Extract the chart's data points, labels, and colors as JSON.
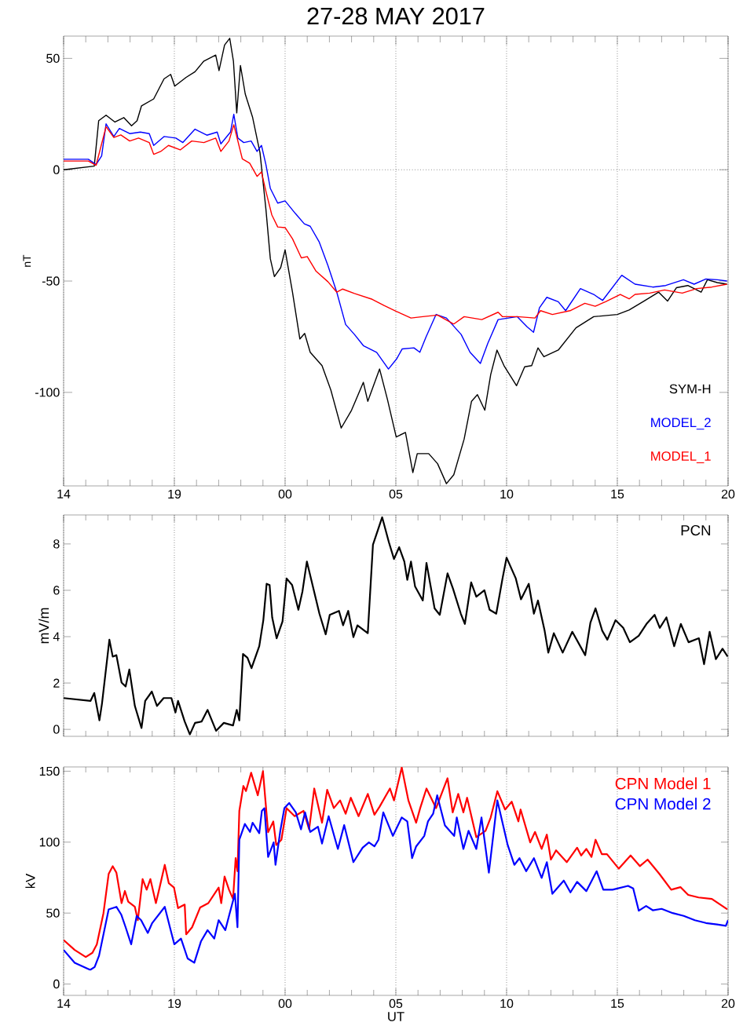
{
  "chart_data": [
    {
      "type": "line",
      "title": "27-28 MAY 2017",
      "ylabel": "nT",
      "xlim": [
        "2017-05-27T14:00",
        "2017-05-28T20:00"
      ],
      "ylim": [
        -142,
        60
      ],
      "xticks": [
        {
          "value": "2017-05-27T14:00",
          "label": "14"
        },
        {
          "value": "2017-05-27T19:00",
          "label": "19"
        },
        {
          "value": "2017-05-28T00:00",
          "label": "00"
        },
        {
          "value": "2017-05-28T05:00",
          "label": "05"
        },
        {
          "value": "2017-05-28T10:00",
          "label": "10"
        },
        {
          "value": "2017-05-28T15:00",
          "label": "15"
        },
        {
          "value": "2017-05-28T20:00",
          "label": "20"
        }
      ],
      "yticks": [
        -100,
        -50,
        0,
        50
      ],
      "grid": "x",
      "legend": "bottom right",
      "ref_lines": [
        {
          "axis": "y",
          "value": 0,
          "line_style": "dotted"
        }
      ],
      "series": [
        {
          "name": "SYM-H",
          "color": "#000000",
          "x": [
            "2017-05-27T14:00",
            "2017-05-27T15:23",
            "2017-05-27T15:35",
            "2017-05-27T15:55",
            "2017-05-27T16:19",
            "2017-05-27T16:43",
            "2017-05-27T17:04",
            "2017-05-27T17:19",
            "2017-05-27T17:31",
            "2017-05-27T18:04",
            "2017-05-27T18:32",
            "2017-05-27T18:50",
            "2017-05-27T19:01",
            "2017-05-27T19:32",
            "2017-05-27T19:56",
            "2017-05-27T20:20",
            "2017-05-27T20:52",
            "2017-05-27T21:01",
            "2017-05-27T21:16",
            "2017-05-27T21:30",
            "2017-05-27T21:40",
            "2017-05-27T21:49",
            "2017-05-27T21:59",
            "2017-05-27T22:12",
            "2017-05-27T22:32",
            "2017-05-27T22:52",
            "2017-05-27T23:08",
            "2017-05-27T23:20",
            "2017-05-27T23:31",
            "2017-05-27T23:48",
            "2017-05-28T00:00",
            "2017-05-28T00:20",
            "2017-05-28T00:40",
            "2017-05-28T00:53",
            "2017-05-28T01:08",
            "2017-05-28T01:40",
            "2017-05-28T02:04",
            "2017-05-28T02:32",
            "2017-05-28T03:00",
            "2017-05-28T03:32",
            "2017-05-28T03:44",
            "2017-05-28T04:16",
            "2017-05-28T04:37",
            "2017-05-28T05:01",
            "2017-05-28T05:26",
            "2017-05-28T05:46",
            "2017-05-28T05:58",
            "2017-05-28T06:29",
            "2017-05-28T06:53",
            "2017-05-28T07:17",
            "2017-05-28T07:37",
            "2017-05-28T08:05",
            "2017-05-28T08:25",
            "2017-05-28T08:41",
            "2017-05-28T09:01",
            "2017-05-28T09:17",
            "2017-05-28T09:34",
            "2017-05-28T09:53",
            "2017-05-28T10:27",
            "2017-05-28T10:49",
            "2017-05-28T11:08",
            "2017-05-28T11:25",
            "2017-05-28T11:41",
            "2017-05-28T12:20",
            "2017-05-28T13:08",
            "2017-05-28T13:56",
            "2017-05-28T15:00",
            "2017-05-28T15:32",
            "2017-05-28T16:12",
            "2017-05-28T16:52",
            "2017-05-28T17:16",
            "2017-05-28T17:40",
            "2017-05-28T18:11",
            "2017-05-28T18:47",
            "2017-05-28T19:04",
            "2017-05-28T19:31",
            "2017-05-28T19:57"
          ],
          "values": [
            0,
            1.6,
            22,
            24.5,
            21.4,
            23.4,
            19.7,
            22,
            28.7,
            31.8,
            40.8,
            42.8,
            37.5,
            41.5,
            44,
            48.8,
            51.5,
            44.5,
            56,
            59,
            48.8,
            25.5,
            46.8,
            34,
            23.5,
            7.6,
            -17.7,
            -40,
            -48,
            -44,
            -36,
            -55,
            -76,
            -73.5,
            -82,
            -88,
            -99,
            -116,
            -108,
            -95.5,
            -104,
            -89.5,
            -103,
            -120,
            -118,
            -136,
            -127.5,
            -127.5,
            -132,
            -141,
            -137,
            -121,
            -104,
            -101,
            -108,
            -92,
            -81,
            -88,
            -97,
            -88.5,
            -88,
            -80,
            -84,
            -81,
            -71,
            -66,
            -65,
            -63,
            -59,
            -55,
            -59,
            -53,
            -52,
            -55,
            -49.4,
            -50.7,
            -51.4
          ]
        },
        {
          "name": "MODEL_2",
          "color": "#0000ff",
          "x": [
            "2017-05-27T14:00",
            "2017-05-27T15:07",
            "2017-05-27T15:28",
            "2017-05-27T15:43",
            "2017-05-27T15:55",
            "2017-05-27T16:16",
            "2017-05-27T16:31",
            "2017-05-27T16:59",
            "2017-05-27T17:28",
            "2017-05-27T17:52",
            "2017-05-27T18:04",
            "2017-05-27T18:32",
            "2017-05-27T19:04",
            "2017-05-27T19:23",
            "2017-05-27T19:56",
            "2017-05-27T20:28",
            "2017-05-27T20:56",
            "2017-05-27T21:06",
            "2017-05-27T21:32",
            "2017-05-27T21:41",
            "2017-05-27T21:52",
            "2017-05-27T22:08",
            "2017-05-27T22:28",
            "2017-05-27T22:44",
            "2017-05-27T22:56",
            "2017-05-27T23:08",
            "2017-05-27T23:20",
            "2017-05-27T23:40",
            "2017-05-28T00:00",
            "2017-05-28T00:28",
            "2017-05-28T00:52",
            "2017-05-28T01:08",
            "2017-05-28T01:32",
            "2017-05-28T01:56",
            "2017-05-28T02:20",
            "2017-05-28T02:44",
            "2017-05-28T03:08",
            "2017-05-28T03:32",
            "2017-05-28T04:08",
            "2017-05-28T04:40",
            "2017-05-28T05:02",
            "2017-05-28T05:17",
            "2017-05-28T05:49",
            "2017-05-28T06:05",
            "2017-05-28T06:22",
            "2017-05-28T06:49",
            "2017-05-28T07:17",
            "2017-05-28T07:57",
            "2017-05-28T08:21",
            "2017-05-28T08:49",
            "2017-05-28T09:09",
            "2017-05-28T09:37",
            "2017-05-28T10:29",
            "2017-05-28T10:56",
            "2017-05-28T11:13",
            "2017-05-28T11:29",
            "2017-05-28T11:49",
            "2017-05-28T12:20",
            "2017-05-28T12:40",
            "2017-05-28T13:20",
            "2017-05-28T13:56",
            "2017-05-28T14:20",
            "2017-05-28T15:12",
            "2017-05-28T15:48",
            "2017-05-28T16:36",
            "2017-05-28T17:11",
            "2017-05-28T17:59",
            "2017-05-28T18:28",
            "2017-05-28T19:00",
            "2017-05-28T19:31",
            "2017-05-28T19:57"
          ],
          "values": [
            4.7,
            4.7,
            2.3,
            6.2,
            20.6,
            14.9,
            18.5,
            16.2,
            16.9,
            16.2,
            10.9,
            14.9,
            14.2,
            12.2,
            18.2,
            15.5,
            16.9,
            11.6,
            16.9,
            24.9,
            14.2,
            12.2,
            12.9,
            8.2,
            10.9,
            2.3,
            -8.4,
            -15,
            -14,
            -19.7,
            -24.3,
            -25.4,
            -32.3,
            -43,
            -55,
            -69.5,
            -74,
            -79,
            -82,
            -89.5,
            -85,
            -80.5,
            -80,
            -82,
            -75,
            -65,
            -66.6,
            -74,
            -82,
            -87,
            -78,
            -67.3,
            -66,
            -70.6,
            -73,
            -62,
            -57.3,
            -59.3,
            -63.3,
            -53.4,
            -56,
            -58.7,
            -47.4,
            -51.4,
            -52.7,
            -52,
            -49.4,
            -51.4,
            -49.1,
            -49.4,
            -50
          ]
        },
        {
          "name": "MODEL_1",
          "color": "#ff0000",
          "x": [
            "2017-05-27T14:00",
            "2017-05-27T15:07",
            "2017-05-27T15:28",
            "2017-05-27T15:55",
            "2017-05-27T16:16",
            "2017-05-27T16:35",
            "2017-05-27T16:59",
            "2017-05-27T17:23",
            "2017-05-27T17:52",
            "2017-05-27T18:04",
            "2017-05-27T18:23",
            "2017-05-27T18:44",
            "2017-05-27T19:16",
            "2017-05-27T19:47",
            "2017-05-27T20:20",
            "2017-05-27T20:52",
            "2017-05-27T21:06",
            "2017-05-27T21:28",
            "2017-05-27T21:41",
            "2017-05-27T22:04",
            "2017-05-27T22:24",
            "2017-05-27T22:44",
            "2017-05-27T22:56",
            "2017-05-27T23:08",
            "2017-05-27T23:24",
            "2017-05-27T23:40",
            "2017-05-28T00:00",
            "2017-05-28T00:20",
            "2017-05-28T00:44",
            "2017-05-28T01:00",
            "2017-05-28T01:24",
            "2017-05-28T01:56",
            "2017-05-28T02:20",
            "2017-05-28T02:36",
            "2017-05-28T03:08",
            "2017-05-28T03:56",
            "2017-05-28T04:28",
            "2017-05-28T05:01",
            "2017-05-28T05:20",
            "2017-05-28T05:41",
            "2017-05-28T06:13",
            "2017-05-28T06:53",
            "2017-05-28T07:37",
            "2017-05-28T08:05",
            "2017-05-28T08:53",
            "2017-05-28T09:37",
            "2017-05-28T09:49",
            "2017-05-28T10:29",
            "2017-05-28T11:17",
            "2017-05-28T11:32",
            "2017-05-28T12:04",
            "2017-05-28T12:52",
            "2017-05-28T13:32",
            "2017-05-28T14:00",
            "2017-05-28T14:28",
            "2017-05-28T15:08",
            "2017-05-28T15:32",
            "2017-05-28T15:48",
            "2017-05-28T16:28",
            "2017-05-28T17:08",
            "2017-05-28T17:56",
            "2017-05-28T18:35",
            "2017-05-28T19:16",
            "2017-05-28T19:57"
          ],
          "values": [
            3.9,
            3.9,
            2,
            19.3,
            14.5,
            15.6,
            12.9,
            14.2,
            12.2,
            6.9,
            8.2,
            10.9,
            8.9,
            12.9,
            12.2,
            14.2,
            8.2,
            12.9,
            20.2,
            4.9,
            2.9,
            -3,
            -1,
            -9.7,
            -20.3,
            -25.7,
            -26,
            -31,
            -39.6,
            -39,
            -45.6,
            -50.3,
            -55,
            -53.6,
            -55.6,
            -58.2,
            -61,
            -63.6,
            -65,
            -66.6,
            -66,
            -65.3,
            -69.3,
            -66,
            -67.3,
            -64,
            -66,
            -66,
            -66.6,
            -63.3,
            -65,
            -63.3,
            -60,
            -61.3,
            -59.3,
            -56,
            -58,
            -56,
            -55.4,
            -54,
            -55.4,
            -53.4,
            -52.7,
            -51.4
          ]
        }
      ]
    },
    {
      "type": "line",
      "ylabel": "mV/m",
      "xlim": [
        "2017-05-27T14:00",
        "2017-05-28T20:00"
      ],
      "ylim": [
        -0.3,
        9.25
      ],
      "xticks": [
        {
          "value": "2017-05-27T14:00",
          "label": null
        },
        {
          "value": "2017-05-27T19:00",
          "label": null
        },
        {
          "value": "2017-05-28T00:00",
          "label": null
        },
        {
          "value": "2017-05-28T05:00",
          "label": null
        },
        {
          "value": "2017-05-28T10:00",
          "label": null
        },
        {
          "value": "2017-05-28T15:00",
          "label": null
        },
        {
          "value": "2017-05-28T20:00",
          "label": null
        }
      ],
      "yticks": [
        0,
        2,
        4,
        6,
        8
      ],
      "grid": "x",
      "legend": "top right",
      "tick_labels": "y",
      "series": [
        {
          "name": "PCN",
          "color": "#000000",
          "x": [
            "2017-05-27T14:00",
            "2017-05-27T15:13",
            "2017-05-27T15:23",
            "2017-05-27T15:37",
            "2017-05-27T15:44",
            "2017-05-27T16:04",
            "2017-05-27T16:13",
            "2017-05-27T16:23",
            "2017-05-27T16:37",
            "2017-05-27T16:48",
            "2017-05-27T16:58",
            "2017-05-27T17:13",
            "2017-05-27T17:31",
            "2017-05-27T17:41",
            "2017-05-27T17:59",
            "2017-05-27T18:13",
            "2017-05-27T18:31",
            "2017-05-27T18:52",
            "2017-05-27T19:03",
            "2017-05-27T19:10",
            "2017-05-27T19:28",
            "2017-05-27T19:42",
            "2017-05-27T19:56",
            "2017-05-27T20:14",
            "2017-05-27T20:30",
            "2017-05-27T20:53",
            "2017-05-27T21:14",
            "2017-05-27T21:39",
            "2017-05-27T21:49",
            "2017-05-27T21:56",
            "2017-05-27T22:06",
            "2017-05-27T22:18",
            "2017-05-27T22:29",
            "2017-05-27T22:50",
            "2017-05-27T23:01",
            "2017-05-27T23:10",
            "2017-05-27T23:18",
            "2017-05-27T23:25",
            "2017-05-27T23:37",
            "2017-05-27T23:53",
            "2017-05-28T00:04",
            "2017-05-28T00:19",
            "2017-05-28T00:36",
            "2017-05-28T00:47",
            "2017-05-28T00:59",
            "2017-05-28T01:11",
            "2017-05-28T01:33",
            "2017-05-28T01:50",
            "2017-05-28T02:01",
            "2017-05-28T02:26",
            "2017-05-28T02:37",
            "2017-05-28T02:51",
            "2017-05-28T03:05",
            "2017-05-28T03:16",
            "2017-05-28T03:44",
            "2017-05-28T03:58",
            "2017-05-28T04:23",
            "2017-05-28T04:41",
            "2017-05-28T04:55",
            "2017-05-28T05:09",
            "2017-05-28T05:23",
            "2017-05-28T05:31",
            "2017-05-28T05:41",
            "2017-05-28T05:52",
            "2017-05-28T06:13",
            "2017-05-28T06:23",
            "2017-05-28T06:45",
            "2017-05-28T06:59",
            "2017-05-28T07:20",
            "2017-05-28T07:35",
            "2017-05-28T07:56",
            "2017-05-28T08:07",
            "2017-05-28T08:24",
            "2017-05-28T08:38",
            "2017-05-28T09:00",
            "2017-05-28T09:14",
            "2017-05-28T09:32",
            "2017-05-28T09:49",
            "2017-05-28T10:00",
            "2017-05-28T10:25",
            "2017-05-28T10:39",
            "2017-05-28T11:00",
            "2017-05-28T11:14",
            "2017-05-28T11:25",
            "2017-05-28T11:43",
            "2017-05-28T11:53",
            "2017-05-28T12:08",
            "2017-05-28T12:32",
            "2017-05-28T12:58",
            "2017-05-28T13:33",
            "2017-05-28T13:47",
            "2017-05-28T14:01",
            "2017-05-28T14:19",
            "2017-05-28T14:33",
            "2017-05-28T14:55",
            "2017-05-28T15:16",
            "2017-05-28T15:34",
            "2017-05-28T15:58",
            "2017-05-28T16:19",
            "2017-05-28T16:41",
            "2017-05-28T16:55",
            "2017-05-28T17:13",
            "2017-05-28T17:34",
            "2017-05-28T17:52",
            "2017-05-28T18:13",
            "2017-05-28T18:41",
            "2017-05-28T18:55",
            "2017-05-28T19:10",
            "2017-05-28T19:27",
            "2017-05-28T19:45",
            "2017-05-28T19:59"
          ],
          "values": [
            1.35,
            1.23,
            1.57,
            0.39,
            1.12,
            3.87,
            3.14,
            3.2,
            2.02,
            1.85,
            2.58,
            1.01,
            0.06,
            1.23,
            1.63,
            1.01,
            1.35,
            1.35,
            0.73,
            1.23,
            0.34,
            -0.22,
            0.28,
            0.34,
            0.84,
            -0.06,
            0.28,
            0.17,
            0.84,
            0.39,
            3.25,
            3.09,
            2.64,
            3.59,
            4.71,
            6.28,
            6.23,
            4.83,
            3.93,
            4.66,
            6.51,
            6.23,
            5.16,
            5.95,
            7.24,
            6.45,
            4.99,
            4.1,
            4.94,
            5.11,
            4.49,
            5.11,
            3.98,
            4.49,
            4.15,
            7.97,
            9.15,
            8.08,
            7.35,
            7.86,
            7.24,
            6.45,
            7.24,
            6.17,
            5.56,
            7.18,
            5.22,
            4.94,
            6.73,
            6.06,
            4.99,
            4.55,
            6.34,
            5.72,
            6.0,
            5.16,
            4.99,
            6.51,
            7.41,
            6.51,
            5.61,
            6.28,
            4.99,
            5.56,
            4.26,
            3.31,
            4.15,
            3.31,
            4.21,
            3.2,
            4.6,
            5.22,
            4.26,
            3.87,
            4.71,
            4.38,
            3.76,
            4.04,
            4.55,
            4.94,
            4.38,
            4.83,
            3.59,
            4.55,
            3.76,
            3.93,
            2.81,
            4.21,
            3.03,
            3.48,
            3.14
          ]
        }
      ]
    },
    {
      "type": "line",
      "xlabel": "UT",
      "ylabel": "kV",
      "xlim": [
        "2017-05-27T14:00",
        "2017-05-28T20:00"
      ],
      "ylim": [
        -8,
        153
      ],
      "xticks": [
        {
          "value": "2017-05-27T14:00",
          "label": "14"
        },
        {
          "value": "2017-05-27T19:00",
          "label": "19"
        },
        {
          "value": "2017-05-28T00:00",
          "label": "00"
        },
        {
          "value": "2017-05-28T05:00",
          "label": "05"
        },
        {
          "value": "2017-05-28T10:00",
          "label": "10"
        },
        {
          "value": "2017-05-28T15:00",
          "label": "15"
        },
        {
          "value": "2017-05-28T20:00",
          "label": "20"
        }
      ],
      "yticks": [
        0,
        50,
        100,
        150
      ],
      "grid": "x",
      "legend": "top right",
      "series": [
        {
          "name": "CPN Model 1",
          "color": "#ff0000",
          "x": [
            "2017-05-27T14:00",
            "2017-05-27T14:30",
            "2017-05-27T15:00",
            "2017-05-27T15:18",
            "2017-05-27T15:30",
            "2017-05-27T15:48",
            "2017-05-27T16:02",
            "2017-05-27T16:13",
            "2017-05-27T16:23",
            "2017-05-27T16:37",
            "2017-05-27T16:46",
            "2017-05-27T16:55",
            "2017-05-27T17:13",
            "2017-05-27T17:21",
            "2017-05-27T17:34",
            "2017-05-27T17:45",
            "2017-05-27T17:55",
            "2017-05-27T18:10",
            "2017-05-27T18:20",
            "2017-05-27T18:34",
            "2017-05-27T18:45",
            "2017-05-27T18:59",
            "2017-05-27T19:10",
            "2017-05-27T19:28",
            "2017-05-27T19:32",
            "2017-05-27T19:48",
            "2017-05-27T20:10",
            "2017-05-27T20:32",
            "2017-05-27T21:00",
            "2017-05-27T21:07",
            "2017-05-27T21:16",
            "2017-05-27T21:28",
            "2017-05-27T21:39",
            "2017-05-27T21:46",
            "2017-05-27T21:51",
            "2017-05-27T21:56",
            "2017-05-27T22:07",
            "2017-05-27T22:14",
            "2017-05-27T22:28",
            "2017-05-27T22:46",
            "2017-05-27T23:00",
            "2017-05-27T23:14",
            "2017-05-27T23:28",
            "2017-05-27T23:36",
            "2017-05-27T23:50",
            "2017-05-28T00:04",
            "2017-05-28T00:26",
            "2017-05-28T00:50",
            "2017-05-28T01:05",
            "2017-05-28T01:19",
            "2017-05-28T01:40",
            "2017-05-28T01:54",
            "2017-05-28T02:12",
            "2017-05-28T02:29",
            "2017-05-28T02:44",
            "2017-05-28T02:58",
            "2017-05-28T03:19",
            "2017-05-28T03:44",
            "2017-05-28T04:02",
            "2017-05-28T04:16",
            "2017-05-28T04:44",
            "2017-05-28T04:55",
            "2017-05-28T05:16",
            "2017-05-28T05:34",
            "2017-05-28T05:55",
            "2017-05-28T06:06",
            "2017-05-28T06:23",
            "2017-05-28T06:49",
            "2017-05-28T07:20",
            "2017-05-28T07:34",
            "2017-05-28T07:49",
            "2017-05-28T08:03",
            "2017-05-28T08:13",
            "2017-05-28T08:38",
            "2017-05-28T09:03",
            "2017-05-28T09:17",
            "2017-05-28T09:35",
            "2017-05-28T09:56",
            "2017-05-28T10:14",
            "2017-05-28T10:32",
            "2017-05-28T10:38",
            "2017-05-28T11:04",
            "2017-05-28T11:17",
            "2017-05-28T11:35",
            "2017-05-28T11:49",
            "2017-05-28T12:00",
            "2017-05-28T12:14",
            "2017-05-28T12:43",
            "2017-05-28T13:11",
            "2017-05-28T13:22",
            "2017-05-28T13:36",
            "2017-05-28T13:50",
            "2017-05-28T14:01",
            "2017-05-28T14:18",
            "2017-05-28T14:32",
            "2017-05-28T15:04",
            "2017-05-28T15:36",
            "2017-05-28T16:01",
            "2017-05-28T16:22",
            "2017-05-28T16:54",
            "2017-05-28T17:26",
            "2017-05-28T17:51",
            "2017-05-28T18:12",
            "2017-05-28T18:40",
            "2017-05-28T19:16",
            "2017-05-28T19:58"
          ],
          "values": [
            31,
            24,
            19,
            22,
            28,
            50,
            77.6,
            83,
            78.5,
            57,
            65.6,
            58,
            54.4,
            45,
            74,
            66.5,
            74,
            57,
            68,
            84,
            71,
            68,
            53.5,
            56,
            35,
            40,
            54,
            57,
            68,
            57,
            75.7,
            66.5,
            60,
            88.7,
            79.5,
            122,
            139.6,
            136,
            148.9,
            133,
            150,
            107,
            114.6,
            98,
            101.7,
            124,
            118.3,
            122,
            109,
            137.8,
            113.7,
            136.9,
            124,
            129.4,
            120,
            131.3,
            118.3,
            134,
            119.3,
            125,
            137.8,
            129.4,
            152.6,
            129.4,
            113.7,
            124,
            137.8,
            124,
            145,
            121,
            134,
            121,
            131.3,
            103.5,
            108,
            117.4,
            135.9,
            123,
            128.5,
            114.6,
            123,
            99.8,
            107.2,
            95.2,
            105.3,
            87.7,
            94.2,
            85.9,
            96.1,
            90.6,
            95.2,
            89.6,
            101.7,
            91.5,
            91.5,
            81.3,
            90.6,
            83.1,
            87.7,
            77.6,
            66.5,
            68.3,
            62.8,
            61,
            60,
            52.6
          ]
        },
        {
          "name": "CPN Model 2",
          "color": "#0000ff",
          "x": [
            "2017-05-27T14:00",
            "2017-05-27T14:30",
            "2017-05-27T15:12",
            "2017-05-27T15:24",
            "2017-05-27T15:36",
            "2017-05-27T16:02",
            "2017-05-27T16:23",
            "2017-05-27T16:36",
            "2017-05-27T16:48",
            "2017-05-27T17:03",
            "2017-05-27T17:18",
            "2017-05-27T17:30",
            "2017-05-27T17:48",
            "2017-05-27T18:00",
            "2017-05-27T18:34",
            "2017-05-27T18:48",
            "2017-05-27T19:00",
            "2017-05-27T19:18",
            "2017-05-27T19:36",
            "2017-05-27T19:54",
            "2017-05-27T20:12",
            "2017-05-27T20:30",
            "2017-05-27T20:48",
            "2017-05-27T21:00",
            "2017-05-27T21:18",
            "2017-05-27T21:30",
            "2017-05-27T21:44",
            "2017-05-27T21:51",
            "2017-05-27T21:56",
            "2017-05-27T22:11",
            "2017-05-27T22:25",
            "2017-05-27T22:32",
            "2017-05-27T22:50",
            "2017-05-27T22:57",
            "2017-05-27T23:04",
            "2017-05-27T23:14",
            "2017-05-27T23:29",
            "2017-05-27T23:34",
            "2017-05-27T23:47",
            "2017-05-27T23:58",
            "2017-05-28T00:11",
            "2017-05-28T00:29",
            "2017-05-28T00:43",
            "2017-05-28T00:54",
            "2017-05-28T01:08",
            "2017-05-28T01:29",
            "2017-05-28T01:40",
            "2017-05-28T01:58",
            "2017-05-28T02:23",
            "2017-05-28T02:40",
            "2017-05-28T03:05",
            "2017-05-28T03:30",
            "2017-05-28T03:47",
            "2017-05-28T04:02",
            "2017-05-28T04:13",
            "2017-05-28T04:26",
            "2017-05-28T04:52",
            "2017-05-28T05:16",
            "2017-05-28T05:31",
            "2017-05-28T05:44",
            "2017-05-28T05:55",
            "2017-05-28T06:17",
            "2017-05-28T06:27",
            "2017-05-28T06:41",
            "2017-05-28T06:52",
            "2017-05-28T07:13",
            "2017-05-28T07:38",
            "2017-05-28T07:45",
            "2017-05-28T08:03",
            "2017-05-28T08:17",
            "2017-05-28T08:38",
            "2017-05-28T08:52",
            "2017-05-28T09:12",
            "2017-05-28T09:20",
            "2017-05-28T09:35",
            "2017-05-28T10:03",
            "2017-05-28T10:21",
            "2017-05-28T10:35",
            "2017-05-28T10:53",
            "2017-05-28T11:14",
            "2017-05-28T11:35",
            "2017-05-28T11:49",
            "2017-05-28T12:04",
            "2017-05-28T12:35",
            "2017-05-28T12:53",
            "2017-05-28T13:11",
            "2017-05-28T13:36",
            "2017-05-28T14:04",
            "2017-05-28T14:22",
            "2017-05-28T14:47",
            "2017-05-28T15:29",
            "2017-05-28T15:43",
            "2017-05-28T15:58",
            "2017-05-28T16:18",
            "2017-05-28T16:36",
            "2017-05-28T17:00",
            "2017-05-28T17:30",
            "2017-05-28T18:00",
            "2017-05-28T18:30",
            "2017-05-28T19:00",
            "2017-05-28T19:30",
            "2017-05-28T19:54",
            "2017-05-28T20:00"
          ],
          "values": [
            24,
            15,
            10,
            12,
            20,
            52.6,
            54.4,
            49,
            40,
            28,
            48,
            45,
            36,
            43,
            54.4,
            40,
            28,
            32,
            18,
            15,
            30,
            38,
            32,
            45,
            38,
            50,
            63.6,
            40,
            101.7,
            112.8,
            107.2,
            113.7,
            106.3,
            122,
            123.9,
            89.6,
            99.8,
            84,
            108,
            123.9,
            127.6,
            121,
            109,
            121,
            107.2,
            110.9,
            99,
            118.3,
            95.2,
            112,
            85.9,
            96.1,
            99.8,
            97,
            101.7,
            121,
            104.4,
            117.4,
            114.6,
            88.7,
            97,
            104.4,
            114.6,
            120,
            133,
            111.8,
            104.4,
            117.4,
            95.2,
            108,
            95.2,
            117.4,
            78.5,
            96.1,
            129.4,
            98,
            84,
            88.7,
            79.5,
            88.7,
            74.8,
            85.9,
            63.6,
            72.9,
            64.6,
            72,
            65.5,
            79.5,
            66.5,
            66.5,
            69.2,
            67.4,
            51.7,
            55,
            52,
            53,
            50,
            48,
            45,
            43,
            42,
            41,
            45
          ]
        }
      ]
    }
  ]
}
